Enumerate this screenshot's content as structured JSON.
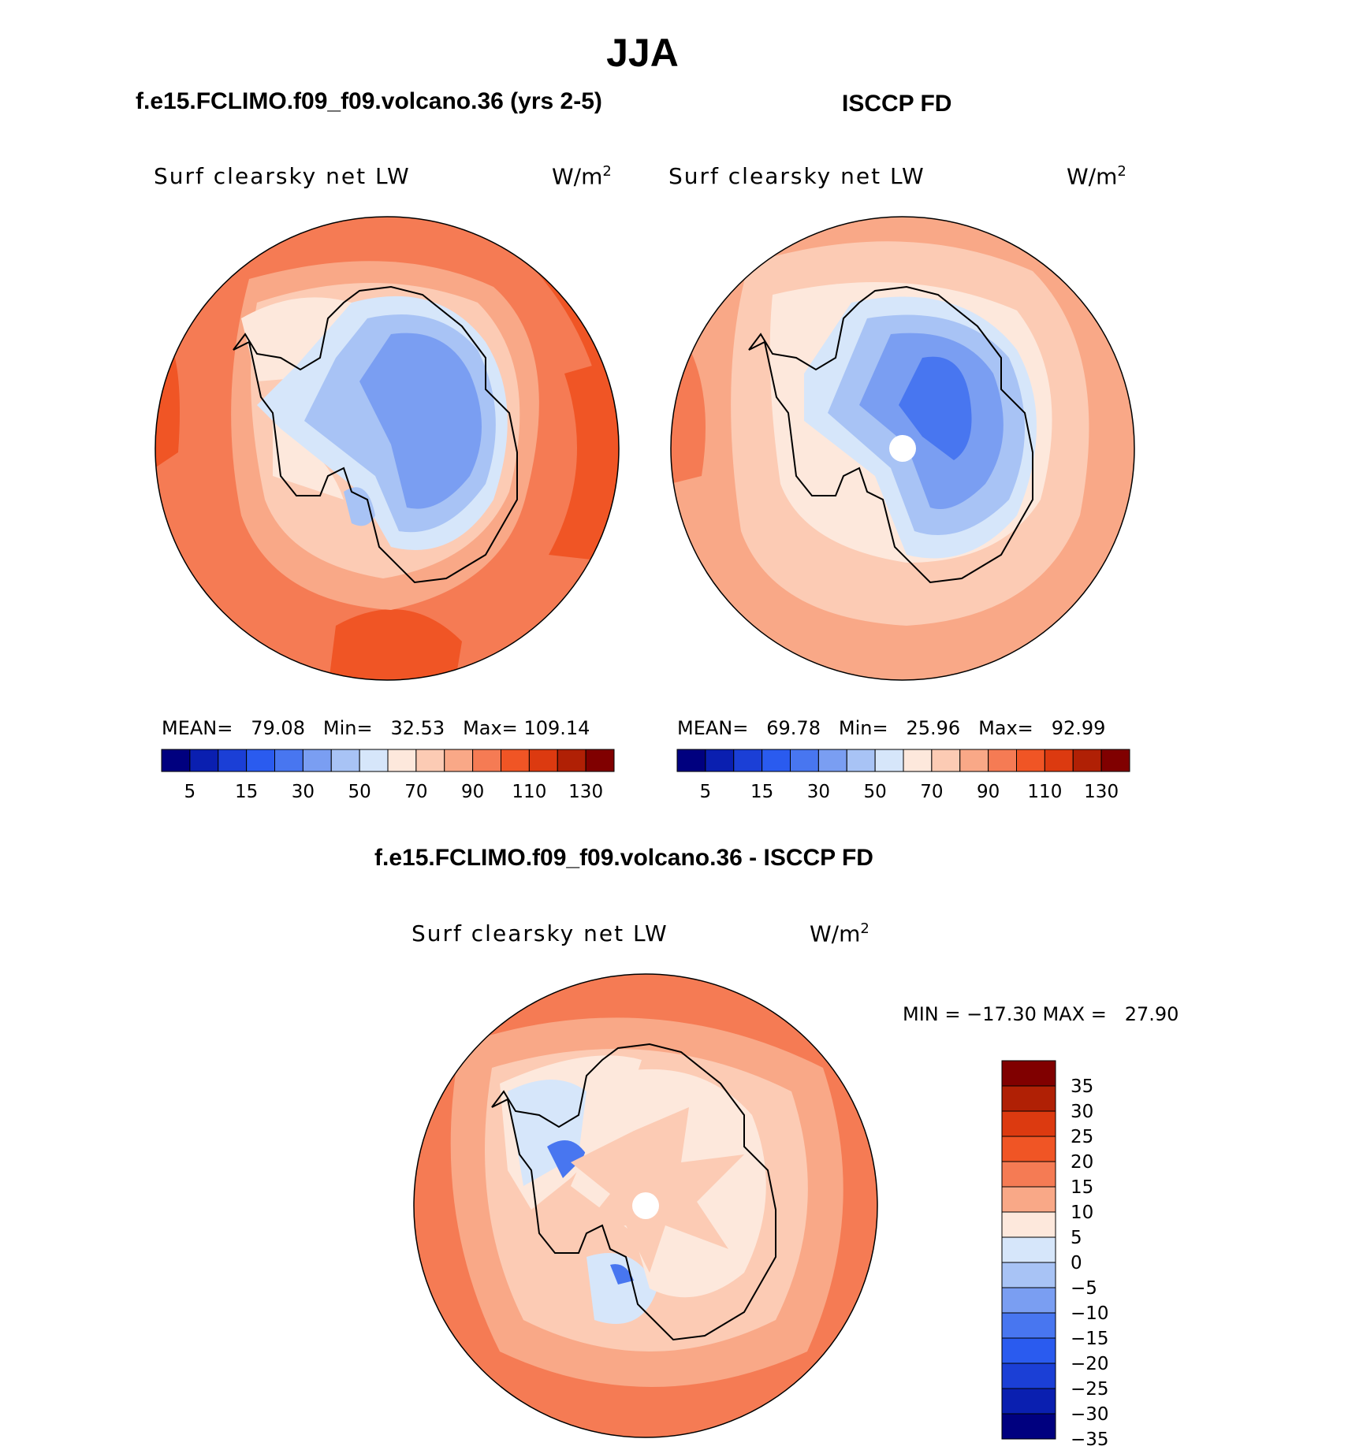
{
  "season": "JJA",
  "panels": [
    {
      "title": "f.e15.FCLIMO.f09_f09.volcano.36 (yrs 2-5)",
      "variable": "Surf clearsky net LW",
      "units": "W/m",
      "units_exp": "2",
      "mean_label": "MEAN=",
      "mean": "79.08",
      "min_label": "Min=",
      "min": "32.53",
      "max_label": "Max=",
      "max": "109.14"
    },
    {
      "title": "ISCCP FD",
      "variable": "Surf clearsky net LW",
      "units": "W/m",
      "units_exp": "2",
      "mean_label": "MEAN=",
      "mean": "69.78",
      "min_label": "Min=",
      "min": "25.96",
      "max_label": "Max=",
      "max": "92.99"
    }
  ],
  "abs_colorbar": {
    "colors": [
      "#00007f",
      "#0a1fb0",
      "#1b3fd6",
      "#2a5bef",
      "#4876f0",
      "#7a9ef2",
      "#a8c3f5",
      "#d6e6fa",
      "#fde8dc",
      "#fccbb4",
      "#f9a887",
      "#f57b54",
      "#f05525",
      "#dc3a10",
      "#b02005",
      "#800000"
    ],
    "tick_labels": [
      "5",
      "15",
      "30",
      "50",
      "70",
      "90",
      "110",
      "130"
    ]
  },
  "diff_panel": {
    "title": "f.e15.FCLIMO.f09_f09.volcano.36 - ISCCP FD",
    "variable": "Surf clearsky net LW",
    "units": "W/m",
    "units_exp": "2",
    "stats": "MIN = −17.30 MAX =   27.90"
  },
  "diff_colorbar": {
    "colors": [
      "#800000",
      "#b02005",
      "#dc3a10",
      "#f05525",
      "#f57b54",
      "#f9a887",
      "#fde8dc",
      "#d6e6fa",
      "#a8c3f5",
      "#7a9ef2",
      "#4876f0",
      "#2a5bef",
      "#1b3fd6",
      "#0a1fb0",
      "#00007f"
    ],
    "tick_labels": [
      "35",
      "30",
      "25",
      "20",
      "15",
      "10",
      "5",
      "0",
      "−5",
      "−10",
      "−15",
      "−20",
      "−25",
      "−30",
      "−35"
    ]
  },
  "map_colors": {
    "ocean_warm": "#f05525",
    "ocean_mid": "#f57b54",
    "ocean_light": "#f9a887",
    "pale": "#fccbb4",
    "cream": "#fde8dc",
    "ice_light": "#d6e6fa",
    "ice_mid": "#a8c3f5",
    "ice_deep": "#7a9ef2",
    "ice_deeper": "#4876f0",
    "blue_dark": "#2a5bef"
  }
}
